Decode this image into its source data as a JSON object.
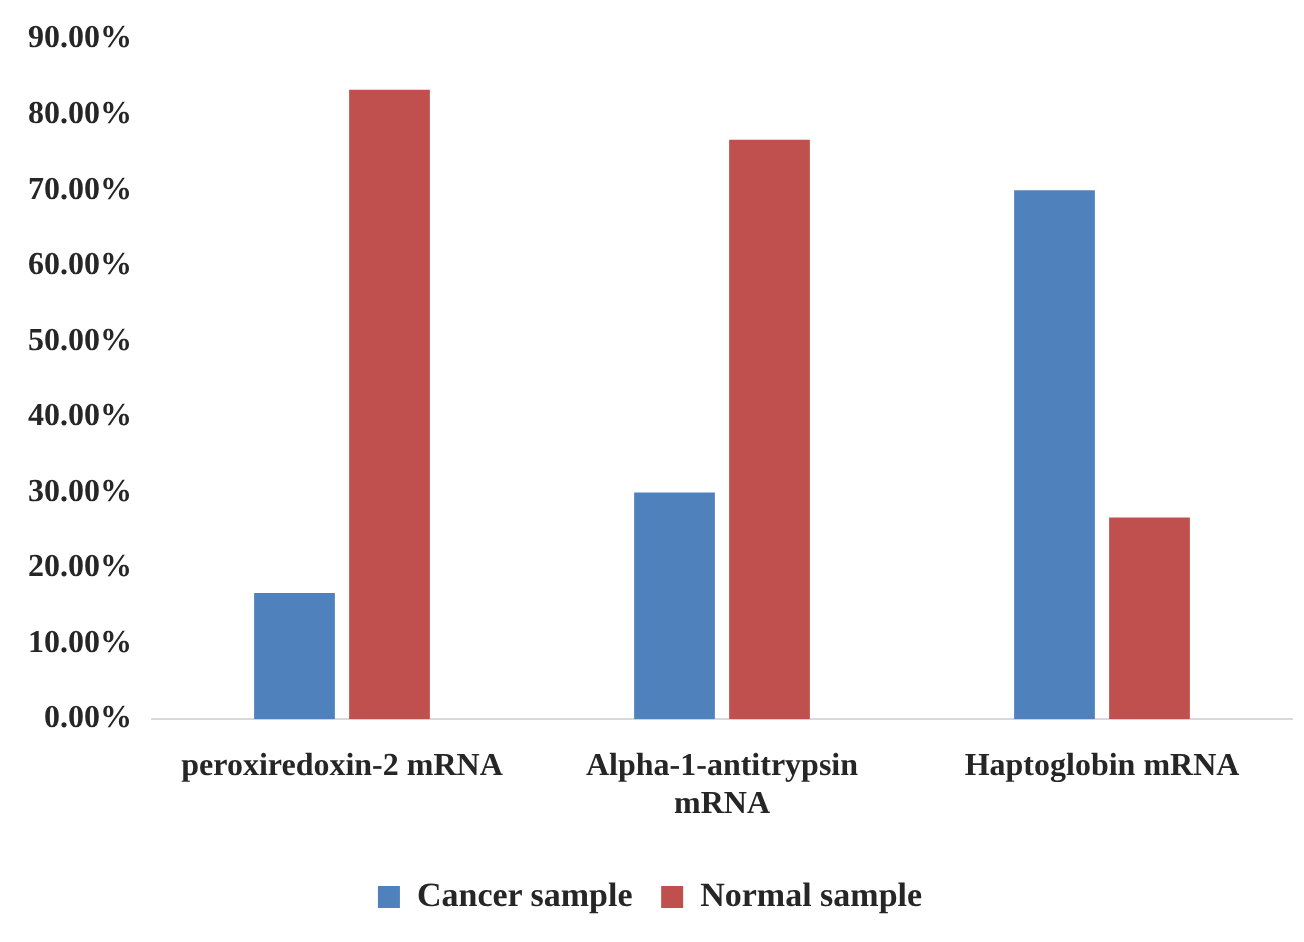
{
  "chart_data": {
    "type": "bar",
    "categories": [
      "peroxiredoxin-2 mRNA",
      "Alpha-1-antitrypsin mRNA",
      "Haptoglobin mRNA"
    ],
    "series": [
      {
        "name": "Cancer sample",
        "color": "#4f81bd",
        "values": [
          16.7,
          30,
          70
        ]
      },
      {
        "name": "Normal sample",
        "color": "#c0504d",
        "values": [
          83.3,
          76.7,
          26.7
        ]
      }
    ],
    "ylim": [
      0,
      90
    ],
    "yticks": [
      {
        "value": 0,
        "label": "0.00%"
      },
      {
        "value": 10,
        "label": "10.00%"
      },
      {
        "value": 20,
        "label": "20.00%"
      },
      {
        "value": 30,
        "label": "30.00%"
      },
      {
        "value": 40,
        "label": "40.00%"
      },
      {
        "value": 50,
        "label": "50.00%"
      },
      {
        "value": 60,
        "label": "60.00%"
      },
      {
        "value": 70,
        "label": "70.00%"
      },
      {
        "value": 80,
        "label": "80.00%"
      },
      {
        "value": 90,
        "label": "90.00%"
      }
    ],
    "grid": false,
    "legend": "bottom"
  }
}
